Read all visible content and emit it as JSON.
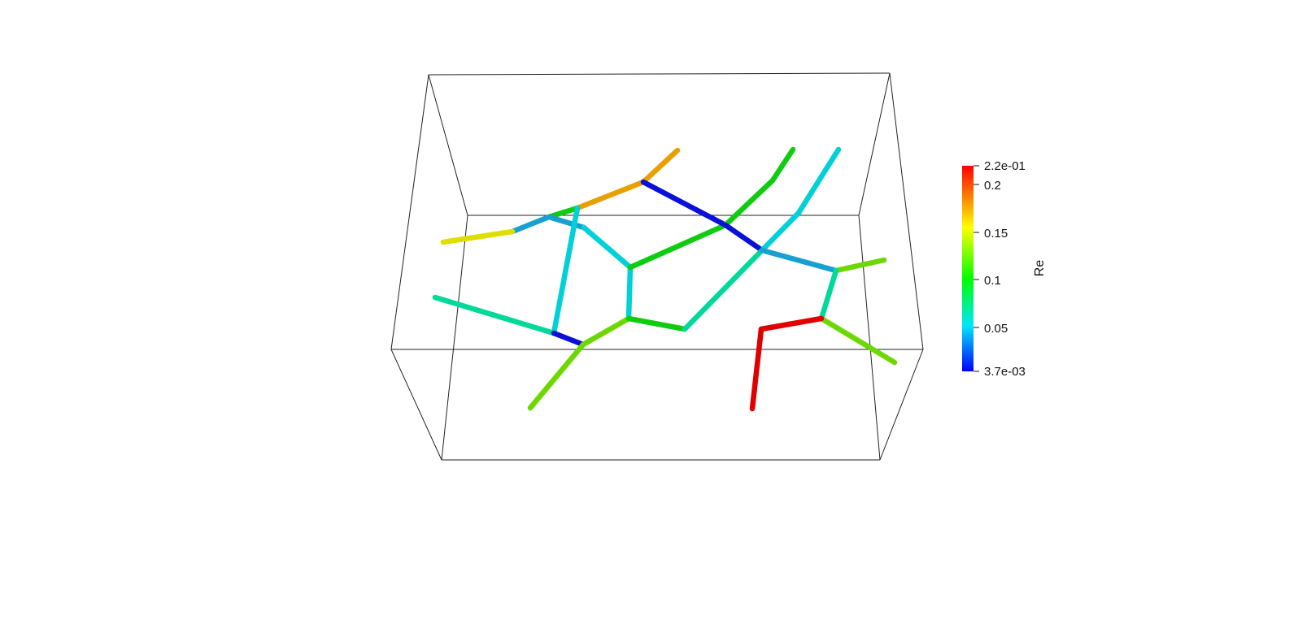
{
  "scene": {
    "colormap": {
      "title": "Re",
      "range": [
        0.0037,
        0.22
      ],
      "labels": {
        "max": "2.2e-01",
        "t1": "0.2",
        "t2": "0.15",
        "t3": "0.1",
        "t4": "0.05",
        "min": "3.7e-03"
      },
      "stops": [
        "#0000ff",
        "#00e5ff",
        "#00ff00",
        "#ffff00",
        "#ff0000"
      ]
    },
    "segment_colors": {
      "red": "#e00000",
      "orange": "#e8a000",
      "yellow": "#dede00",
      "green": "#10cc10",
      "lime": "#6cd800",
      "teal": "#00d99a",
      "cyan": "#00d0d8",
      "sky": "#18a0d0",
      "blue": "#0a10d8"
    }
  }
}
